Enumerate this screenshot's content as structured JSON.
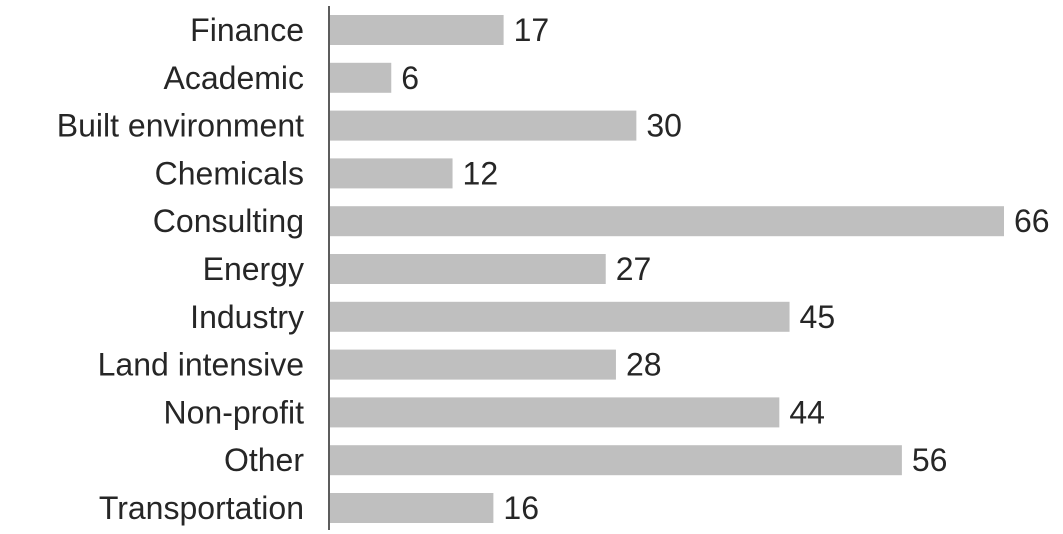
{
  "chart_data": {
    "type": "bar",
    "orientation": "horizontal",
    "title": "",
    "xlabel": "",
    "ylabel": "",
    "categories": [
      "Finance",
      "Academic",
      "Built environment",
      "Chemicals",
      "Consulting",
      "Energy",
      "Industry",
      "Land intensive",
      "Non-profit",
      "Other",
      "Transportation"
    ],
    "values": [
      17,
      6,
      30,
      12,
      66,
      27,
      45,
      28,
      44,
      56,
      16
    ],
    "xlim": [
      0,
      66
    ],
    "grid": false,
    "legend": "none",
    "colors": {
      "bar": "#bfbfbf",
      "text": "#262626",
      "axis": "#262626",
      "background": "#ffffff"
    }
  }
}
